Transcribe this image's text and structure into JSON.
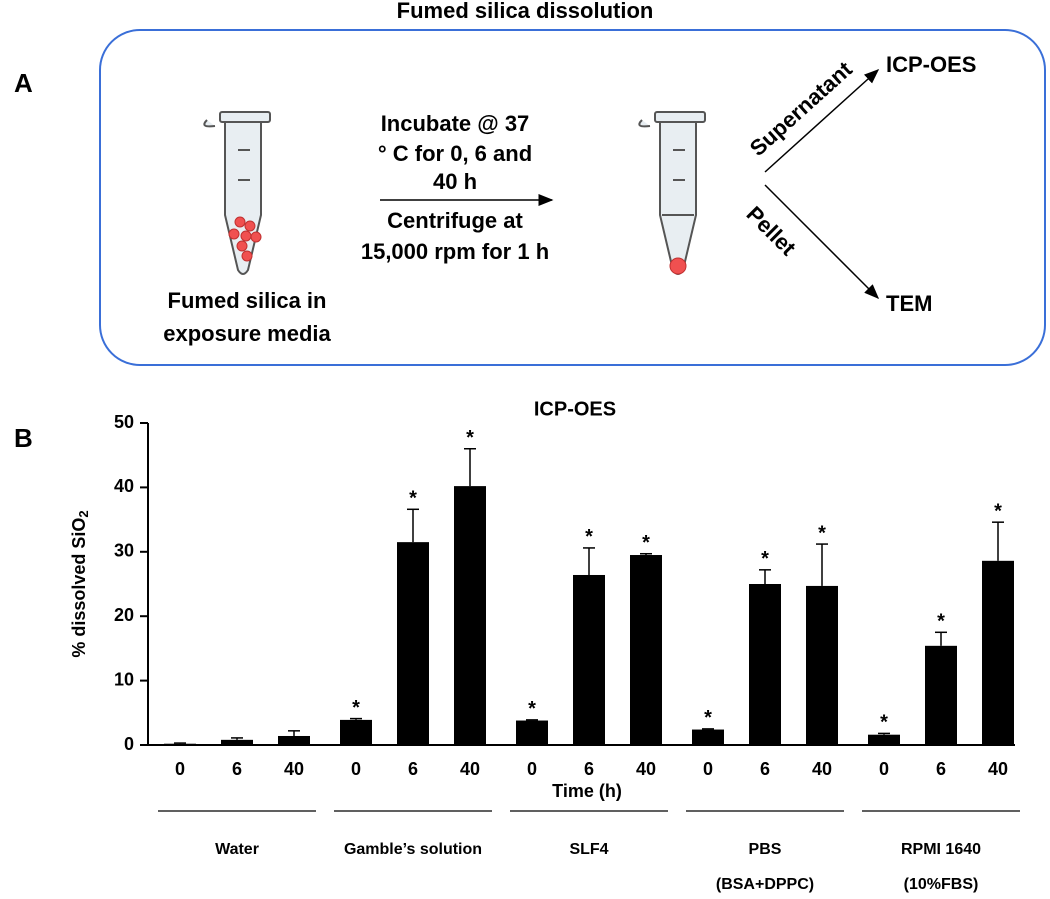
{
  "figure": {
    "title": "Fumed silica dissolution",
    "panel_labels": [
      "A",
      "B"
    ],
    "diagram": {
      "sample_label": [
        "Fumed silica in",
        "exposure media"
      ],
      "step_above": [
        "Incubate @ 37",
        "° C for 0, 6 and",
        "40 h"
      ],
      "step_below": [
        "Centrifuge at",
        "15,000 rpm for 1 h"
      ],
      "branch_up": "Supernatant",
      "branch_down": "Pellet",
      "target_up": "ICP-OES",
      "target_down": "TEM"
    }
  },
  "chart_data": {
    "type": "bar",
    "title": "ICP-OES",
    "xlabel": "Time (h)",
    "ylabel": "% dissolved SiO",
    "ylabel_subscript": "2",
    "categories": [
      "0",
      "6",
      "40",
      "0",
      "6",
      "40",
      "0",
      "6",
      "40",
      "0",
      "6",
      "40",
      "0",
      "6",
      "40"
    ],
    "groups": [
      [
        "Water"
      ],
      [
        "Gamble’s solution"
      ],
      [
        "SLF4"
      ],
      [
        "PBS",
        "(BSA+DPPC)"
      ],
      [
        "RPMI 1640",
        "(10%FBS)"
      ]
    ],
    "values": [
      0.2,
      0.8,
      1.4,
      3.9,
      31.5,
      40.2,
      3.8,
      26.4,
      29.5,
      2.4,
      25,
      24.7,
      1.6,
      15.4,
      28.6
    ],
    "errors": [
      0.1,
      0.3,
      0.8,
      0.2,
      5.1,
      5.8,
      0.1,
      4.2,
      0.2,
      0.1,
      2.2,
      6.5,
      0.2,
      2.1,
      6
    ],
    "significant": [
      false,
      false,
      false,
      true,
      true,
      true,
      true,
      true,
      true,
      true,
      true,
      true,
      true,
      true,
      true
    ],
    "significance_label": "*",
    "color": "#000000",
    "ylim": [
      0,
      50
    ],
    "yticks": [
      0,
      10,
      20,
      30,
      40,
      50
    ]
  }
}
